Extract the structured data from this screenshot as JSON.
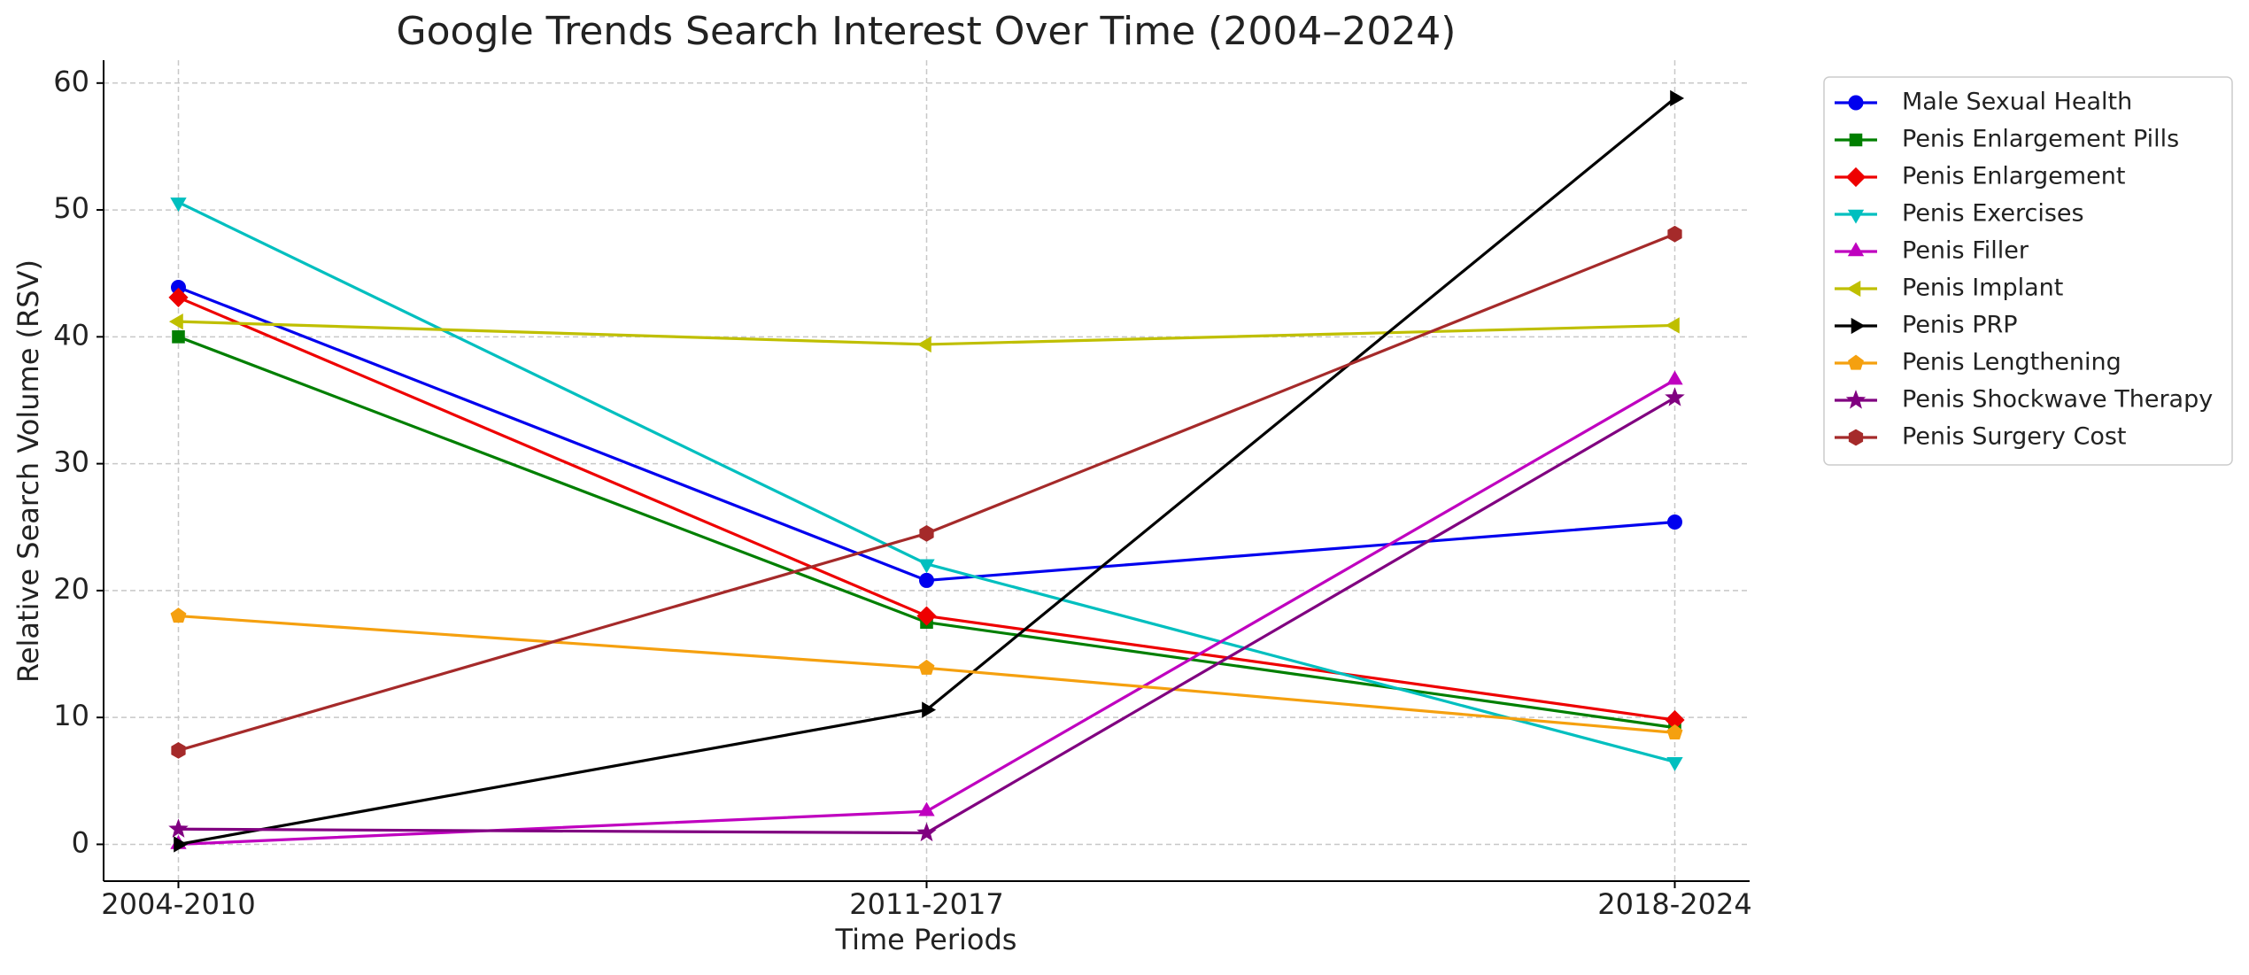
{
  "chart_data": {
    "type": "line",
    "title": "Google Trends Search Interest Over Time (2004–2024)",
    "x_label": "Time Periods",
    "y_label": "Relative Search Volume (RSV)",
    "categories": [
      "2004-2010",
      "2011-2017",
      "2018-2024"
    ],
    "ylim": [
      -2.9,
      61.8
    ],
    "yticks": [
      0,
      10,
      20,
      30,
      40,
      50,
      60
    ],
    "grid": true,
    "legend": "outside-upper-right",
    "series": [
      {
        "name": "Male Sexual Health",
        "color": "#0000ee",
        "marker": "circle",
        "values": [
          43.9,
          20.8,
          25.4
        ]
      },
      {
        "name": "Penis Enlargement Pills",
        "color": "#007f00",
        "marker": "square",
        "values": [
          40.0,
          17.5,
          9.2
        ]
      },
      {
        "name": "Penis Enlargement",
        "color": "#ee0000",
        "marker": "diamond",
        "values": [
          43.1,
          18.0,
          9.8
        ]
      },
      {
        "name": "Penis Exercises",
        "color": "#00bfbf",
        "marker": "triangle-down",
        "values": [
          50.6,
          22.1,
          6.5
        ]
      },
      {
        "name": "Penis Filler",
        "color": "#bf00bf",
        "marker": "triangle-up",
        "values": [
          0,
          2.6,
          36.6
        ]
      },
      {
        "name": "Penis Implant",
        "color": "#bfbf00",
        "marker": "triangle-left",
        "values": [
          41.2,
          39.4,
          40.9
        ]
      },
      {
        "name": "Penis PRP",
        "color": "#000000",
        "marker": "triangle-right",
        "values": [
          0,
          10.6,
          58.8
        ]
      },
      {
        "name": "Penis Lengthening",
        "color": "#f5a00f",
        "marker": "pentagon",
        "values": [
          18.0,
          13.9,
          8.8
        ]
      },
      {
        "name": "Penis Shockwave Therapy",
        "color": "#800080",
        "marker": "star",
        "values": [
          1.2,
          0.9,
          35.2
        ]
      },
      {
        "name": "Penis Surgery Cost",
        "color": "#a52a2a",
        "marker": "hexagon",
        "values": [
          7.4,
          24.5,
          48.1
        ]
      }
    ]
  }
}
